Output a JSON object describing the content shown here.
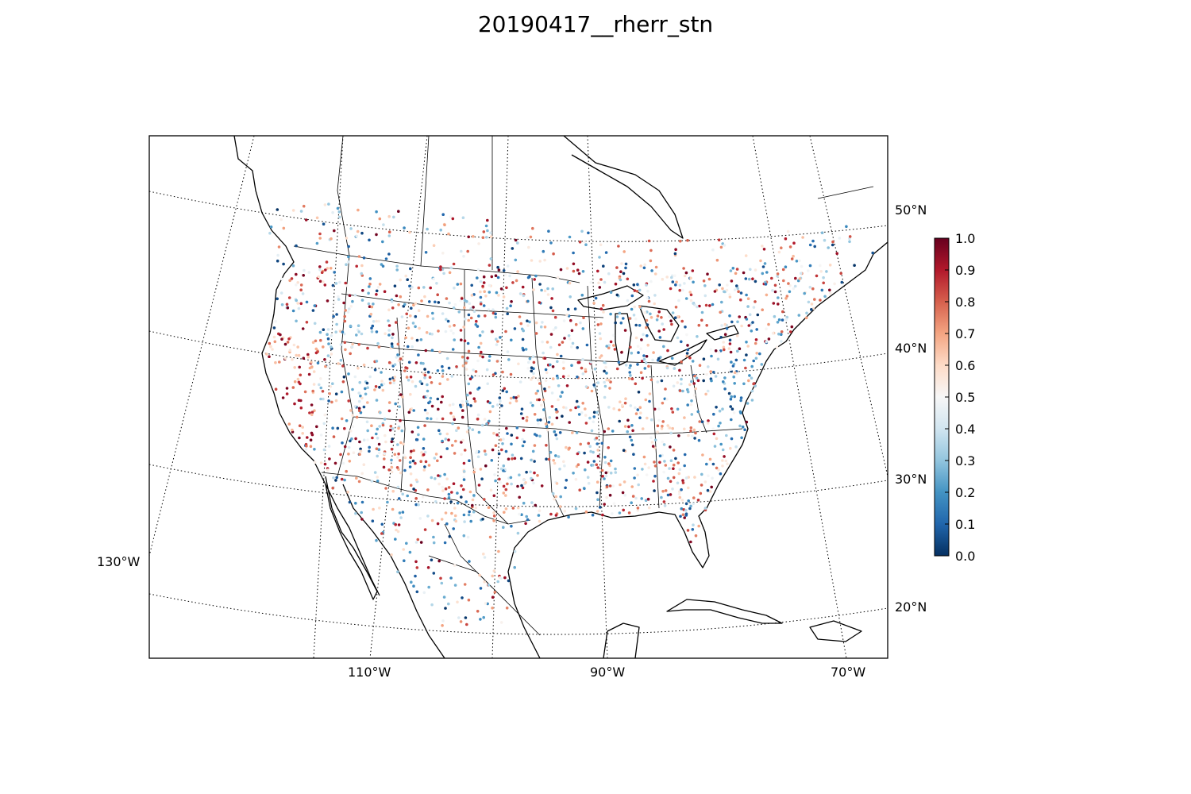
{
  "title": "20190417__rherr_stn",
  "map": {
    "projection": "lambert-conformal",
    "region": "North America (CONUS)",
    "graticule_style": "dotted",
    "lon_labels": [
      "130°W",
      "110°W",
      "90°W",
      "70°W"
    ],
    "lat_labels": [
      "50°N",
      "40°N",
      "30°N",
      "20°N"
    ]
  },
  "colorbar": {
    "colormap": "RdBu_r",
    "range": [
      0.0,
      1.0
    ],
    "tick_labels": [
      "1.0",
      "0.9",
      "0.8",
      "0.7",
      "0.6",
      "0.5",
      "0.4",
      "0.3",
      "0.2",
      "0.1",
      "0.0"
    ],
    "colors": [
      "#053061",
      "#2166ac",
      "#4393c3",
      "#92c5de",
      "#d1e5f0",
      "#f7f7f7",
      "#fddbc7",
      "#f4a582",
      "#d6604d",
      "#b2182b",
      "#67001f"
    ]
  },
  "stations": {
    "type": "scatter",
    "count": 2200,
    "value_range": [
      0.0,
      1.0
    ],
    "description_regions": [
      "west coast high values",
      "great plains mixed",
      "east coast mixed"
    ]
  }
}
